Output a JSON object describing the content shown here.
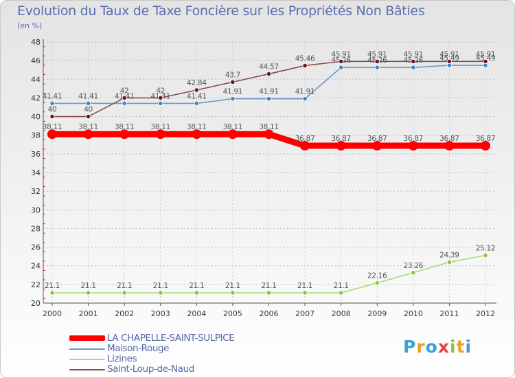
{
  "header": {
    "title": "Evolution du Taux de Taxe Foncière sur les Propriétés Non Bâties",
    "subtitle": "(en %)"
  },
  "logo": {
    "text": "Proxiti",
    "letter_colors": [
      "#3aa0d8",
      "#f0a020",
      "#3aa0d8",
      "#e84040",
      "#8bc34a",
      "#f0a020",
      "#3aa0d8"
    ]
  },
  "chart_data": {
    "type": "line",
    "title": "Evolution du Taux de Taxe Foncière sur les Propriétés Non Bâties",
    "ylabel": "(en %)",
    "xlabel": "",
    "x": [
      2000,
      2001,
      2002,
      2003,
      2004,
      2005,
      2006,
      2007,
      2008,
      2009,
      2010,
      2011,
      2012
    ],
    "ylim": [
      20,
      48
    ],
    "yticks": [
      20,
      22,
      24,
      26,
      28,
      30,
      32,
      34,
      36,
      38,
      40,
      42,
      44,
      46,
      48
    ],
    "grid": "horizontal dashed",
    "legend_position": "bottom-left",
    "series": [
      {
        "name": "LA CHAPELLE-SAINT-SULPICE",
        "color": "#ff0000",
        "emphasis": true,
        "values": [
          38.11,
          38.11,
          38.11,
          38.11,
          38.11,
          38.11,
          38.11,
          36.87,
          36.87,
          36.87,
          36.87,
          36.87,
          36.87
        ],
        "labels": [
          "38.11",
          "38.11",
          "38.11",
          "38.11",
          "38.11",
          "38.11",
          "38.11",
          "36.87",
          "36.87",
          "36.87",
          "36.87",
          "36.87",
          "36.87"
        ]
      },
      {
        "name": "Maison-Rouge",
        "color": "#6699cc",
        "marker": "#3d85c6",
        "values": [
          41.41,
          41.41,
          41.41,
          41.41,
          41.41,
          41.91,
          41.91,
          41.91,
          45.26,
          45.26,
          45.26,
          45.49,
          45.49
        ],
        "labels": [
          "41.41",
          "41.41",
          "41.41",
          "41.41",
          "41.41",
          "41.91",
          "41.91",
          "41.91",
          "45.26",
          "45.26",
          "45.26",
          "45.49",
          "45.49"
        ]
      },
      {
        "name": "Lizines",
        "color": "#a6db7a",
        "marker": "#8cc63f",
        "values": [
          21.1,
          21.1,
          21.1,
          21.1,
          21.1,
          21.1,
          21.1,
          21.1,
          21.1,
          22.16,
          23.26,
          24.39,
          25.12
        ],
        "labels": [
          "21.1",
          "21.1",
          "21.1",
          "21.1",
          "21.1",
          "21.1",
          "21.1",
          "21.1",
          "21.1",
          "22.16",
          "23.26",
          "24.39",
          "25.12"
        ]
      },
      {
        "name": "Saint-Loup-de-Naud",
        "color": "#8b4a4a",
        "marker": "#6b1a1a",
        "values": [
          40,
          40,
          42,
          42,
          42.84,
          43.7,
          44.57,
          45.46,
          45.91,
          45.91,
          45.91,
          45.91,
          45.91
        ],
        "labels": [
          "40",
          "40",
          "42",
          "42",
          "42.84",
          "43.7",
          "44.57",
          "45.46",
          "45.91",
          "45.91",
          "45.91",
          "45.91",
          "45.91"
        ]
      }
    ]
  }
}
